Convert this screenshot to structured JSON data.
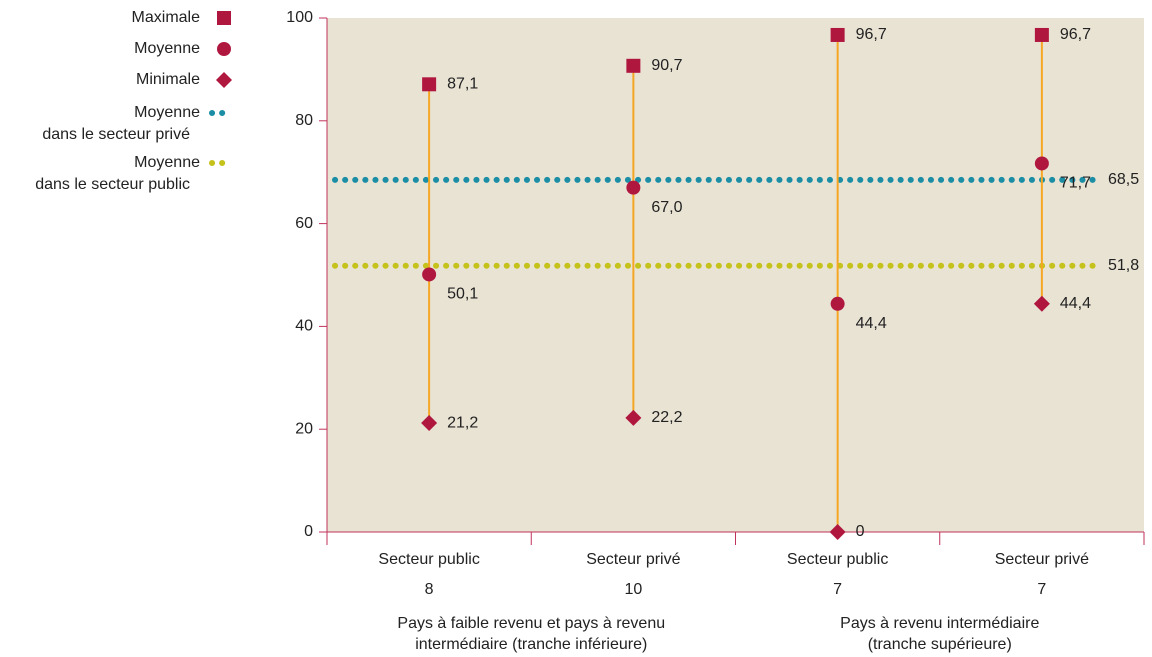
{
  "chart_data": {
    "type": "range-dot",
    "categories": [
      "Secteur public",
      "Secteur privé",
      "Secteur public",
      "Secteur privé"
    ],
    "counts": [
      8,
      10,
      7,
      7
    ],
    "groups": [
      [
        "Pays à faible revenu et pays à revenu",
        "intermédiaire (tranche inférieure)"
      ],
      [
        "Pays à revenu intermédiaire",
        "(tranche supérieure)"
      ]
    ],
    "series": [
      {
        "name": "Maximale",
        "marker": "square",
        "color": "#b0173f",
        "values": [
          87.1,
          90.7,
          96.7,
          96.7
        ],
        "value_labels": [
          "87,1",
          "90,7",
          "96,7",
          "96,7"
        ]
      },
      {
        "name": "Moyenne",
        "marker": "circle",
        "color": "#b0173f",
        "values": [
          50.1,
          67.0,
          44.4,
          71.7
        ],
        "value_labels": [
          "50,1",
          "67,0",
          "44,4",
          "71,7"
        ]
      },
      {
        "name": "Minimale",
        "marker": "diamond",
        "color": "#b0173f",
        "values": [
          21.2,
          22.2,
          0,
          44.4
        ],
        "value_labels": [
          "21,2",
          "22,2",
          "0",
          "44,4"
        ]
      }
    ],
    "reference_lines": [
      {
        "name": [
          "Moyenne",
          "dans le secteur privé"
        ],
        "color": "#1b8ea6",
        "value": 68.5,
        "value_label": "68,5"
      },
      {
        "name": [
          "Moyenne",
          "dans le secteur public"
        ],
        "color": "#c5c21c",
        "value": 51.8,
        "value_label": "51,8"
      }
    ],
    "range_color": "#f5a623",
    "background": "#e9e3d4",
    "ylim": [
      0,
      100
    ],
    "yticks": [
      0,
      20,
      40,
      60,
      80,
      100
    ]
  }
}
